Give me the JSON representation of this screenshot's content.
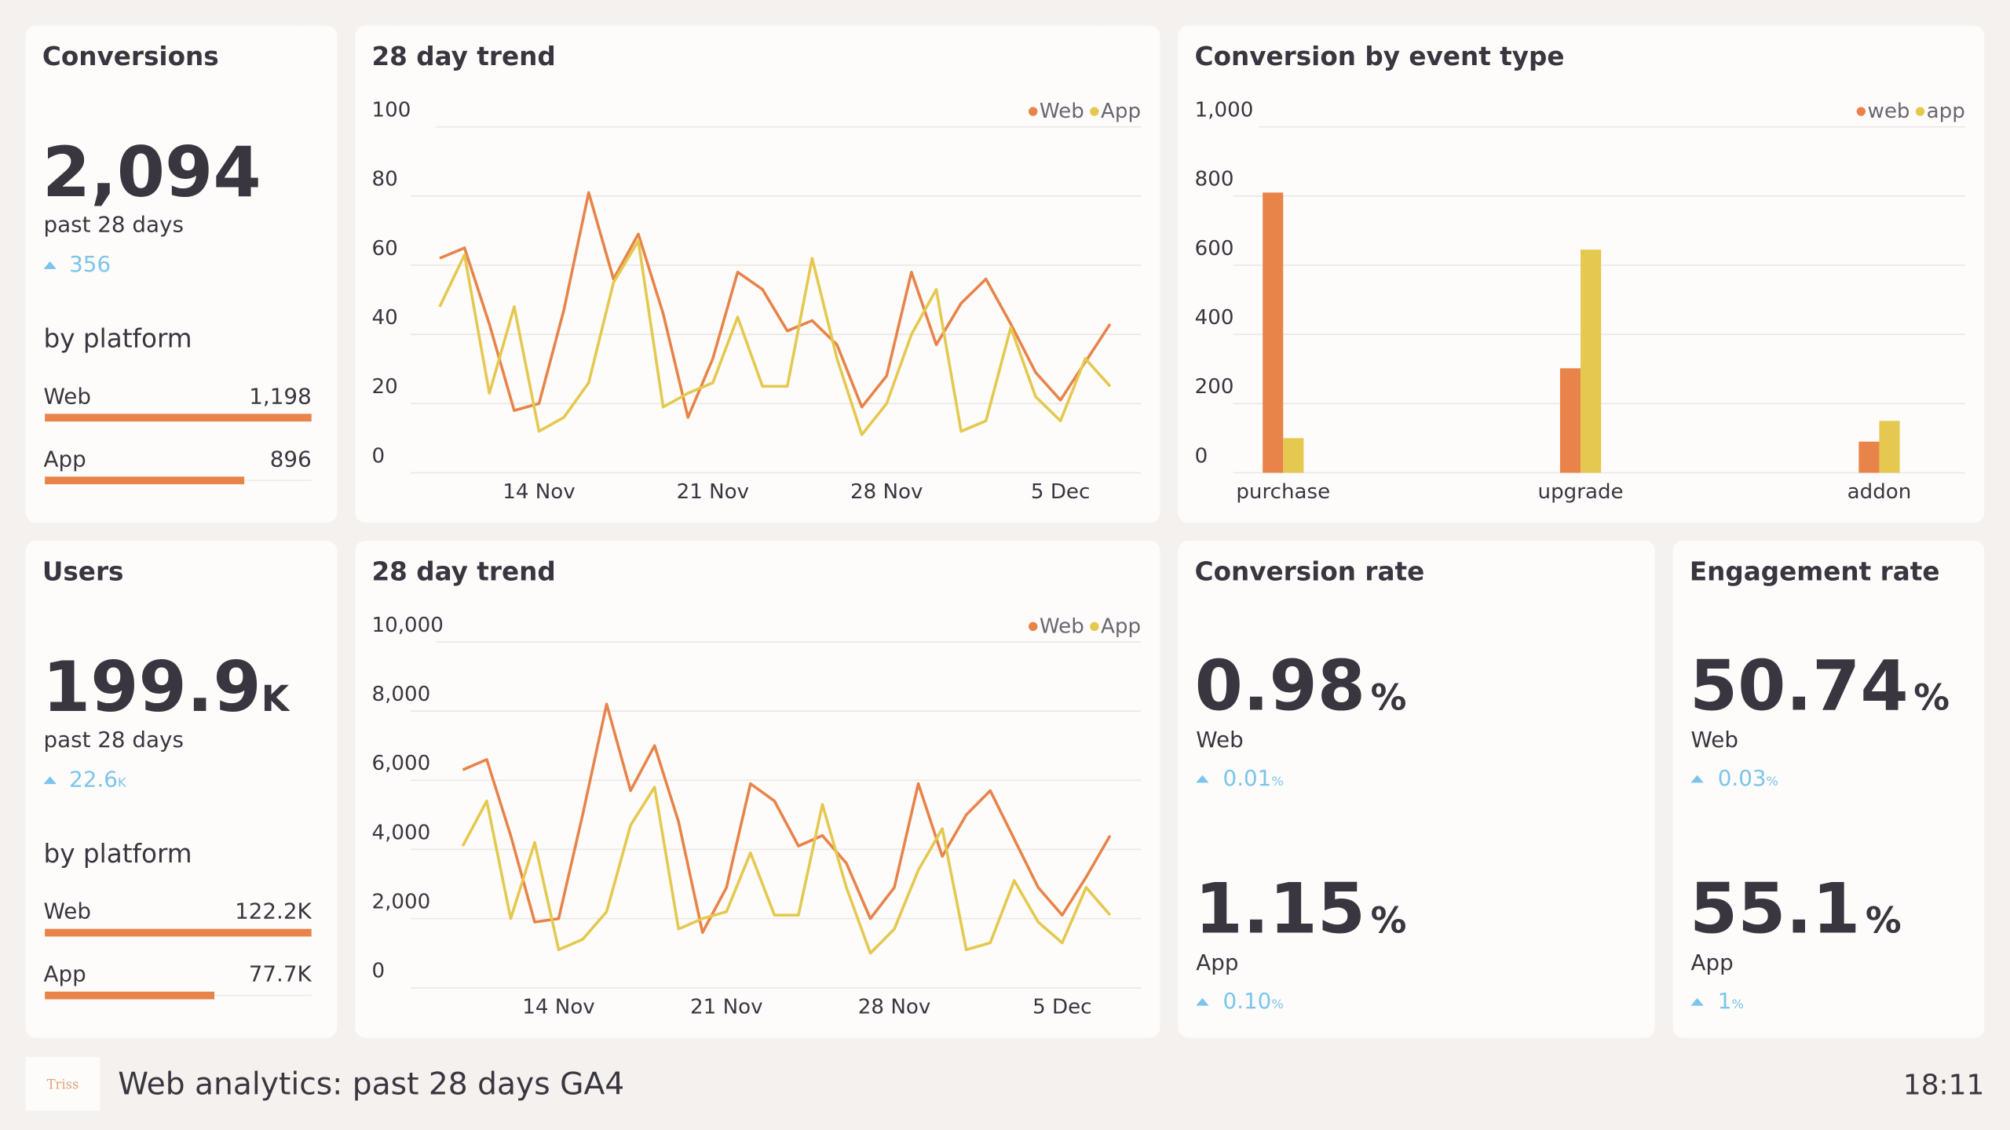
{
  "conversions": {
    "title": "Conversions",
    "value": "2,094",
    "period": "past 28 days",
    "delta": "356",
    "breakdown_title": "by platform",
    "platforms": [
      {
        "name": "Web",
        "value": 1198,
        "label": "1,198"
      },
      {
        "name": "App",
        "value": 896,
        "label": "896"
      }
    ]
  },
  "conversions_trend": {
    "type": "line",
    "title": "28 day trend",
    "categories": [
      null,
      null,
      null,
      null,
      "14 Nov",
      null,
      null,
      null,
      null,
      null,
      null,
      "21 Nov",
      null,
      null,
      null,
      null,
      null,
      null,
      "28 Nov",
      null,
      null,
      null,
      null,
      null,
      null,
      "5 Dec",
      null,
      null
    ],
    "series": [
      {
        "name": "Web",
        "color": "#e8844a",
        "values": [
          62,
          65,
          43,
          18,
          20,
          47,
          81,
          56,
          69,
          46,
          16,
          33,
          58,
          53,
          41,
          44,
          37,
          19,
          28,
          58,
          37,
          49,
          56,
          43,
          29,
          21,
          32,
          43
        ]
      },
      {
        "name": "App",
        "color": "#e5c84f",
        "values": [
          48,
          63,
          23,
          48,
          12,
          16,
          26,
          55,
          67,
          19,
          23,
          26,
          45,
          25,
          25,
          62,
          33,
          11,
          20,
          40,
          53,
          12,
          15,
          42,
          22,
          15,
          33,
          25
        ]
      }
    ],
    "ylim": [
      0,
      100
    ],
    "yticks": [
      0,
      20,
      40,
      60,
      80,
      100
    ],
    "grid": true,
    "legend": "top-right"
  },
  "conversion_by_event": {
    "type": "bar",
    "title": "Conversion by event type",
    "categories": [
      "purchase",
      "upgrade",
      "addon"
    ],
    "series": [
      {
        "name": "web",
        "color": "#e8844a",
        "values": [
          810,
          302,
          90
        ]
      },
      {
        "name": "app",
        "color": "#e5c84f",
        "values": [
          100,
          645,
          150
        ]
      }
    ],
    "ylim": [
      0,
      1000
    ],
    "yticks": [
      0,
      200,
      400,
      600,
      800,
      {
        "value": 1000,
        "label": "1,000"
      }
    ],
    "grid": true,
    "legend": "top-right"
  },
  "users": {
    "title": "Users",
    "value": "199.9",
    "unit": "K",
    "period": "past 28 days",
    "delta": "22.6",
    "delta_unit": "K",
    "breakdown_title": "by platform",
    "platforms": [
      {
        "name": "Web",
        "value": 122200,
        "label": "122.2K"
      },
      {
        "name": "App",
        "value": 77700,
        "label": "77.7K"
      }
    ]
  },
  "users_trend": {
    "type": "line",
    "title": "28 day trend",
    "categories": [
      null,
      null,
      null,
      null,
      "14 Nov",
      null,
      null,
      null,
      null,
      null,
      null,
      "21 Nov",
      null,
      null,
      null,
      null,
      null,
      null,
      "28 Nov",
      null,
      null,
      null,
      null,
      null,
      null,
      "5 Dec",
      null,
      null
    ],
    "series": [
      {
        "name": "Web",
        "color": "#e8844a",
        "values": [
          6300,
          6600,
          4400,
          1900,
          2000,
          5000,
          8200,
          5700,
          7000,
          4800,
          1600,
          2900,
          5900,
          5400,
          4100,
          4400,
          3600,
          2000,
          2900,
          5900,
          3800,
          5000,
          5700,
          4300,
          2900,
          2100,
          3200,
          4400
        ]
      },
      {
        "name": "App",
        "color": "#e5c84f",
        "values": [
          4100,
          5400,
          2000,
          4200,
          1100,
          1400,
          2200,
          4700,
          5800,
          1700,
          2000,
          2200,
          3900,
          2100,
          2100,
          5300,
          2900,
          1000,
          1700,
          3400,
          4600,
          1100,
          1300,
          3100,
          1900,
          1300,
          2900,
          2100
        ]
      }
    ],
    "ylim": [
      0,
      10000
    ],
    "yticks": [
      0,
      {
        "value": 2000,
        "label": "2,000"
      },
      {
        "value": 4000,
        "label": "4,000"
      },
      {
        "value": 6000,
        "label": "6,000"
      },
      {
        "value": 8000,
        "label": "8,000"
      },
      {
        "value": 10000,
        "label": "10,000"
      }
    ],
    "grid": true,
    "legend": "top-right"
  },
  "conversion_rate": {
    "title": "Conversion rate",
    "unit": "%",
    "items": [
      {
        "value": "0.98",
        "name": "Web",
        "delta": "0.01"
      },
      {
        "value": "1.15",
        "name": "App",
        "delta": "0.10"
      }
    ]
  },
  "engagement_rate": {
    "title": "Engagement rate",
    "unit": "%",
    "items": [
      {
        "value": "50.74",
        "name": "Web",
        "delta": "0.03"
      },
      {
        "value": "55.1",
        "name": "App",
        "delta": "1"
      }
    ]
  },
  "footer": {
    "logo": "Triss",
    "title": "Web analytics: past 28 days GA4",
    "time": "18:11"
  }
}
